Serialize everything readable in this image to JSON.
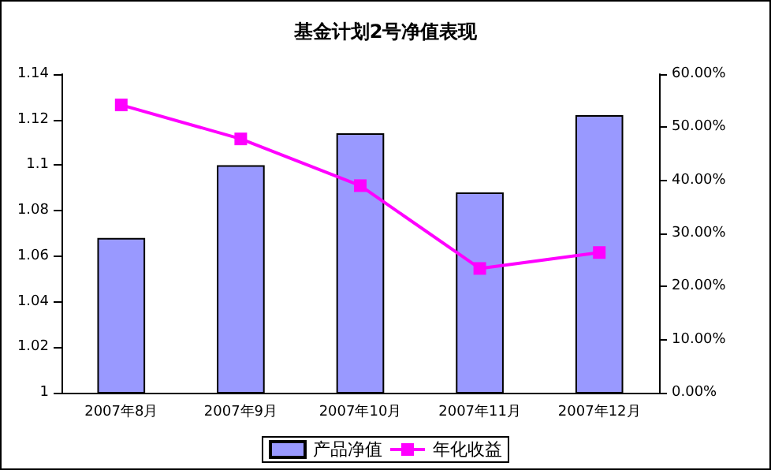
{
  "chart_data": {
    "type": "bar",
    "title": "基金计划2号净值表现",
    "categories": [
      "2007年8月",
      "2007年9月",
      "2007年10月",
      "2007年11月",
      "2007年12月"
    ],
    "series": [
      {
        "name": "产品净值",
        "color": "#9999ff",
        "values": [
          1.068,
          1.1,
          1.114,
          1.088,
          1.122
        ]
      },
      {
        "name": "年化收益",
        "type": "line",
        "axis": "y2",
        "color": "#ff00ff",
        "marker": "square",
        "values": [
          54.2,
          47.8,
          39.0,
          23.4,
          26.4
        ]
      }
    ],
    "ylim": [
      1,
      1.14
    ],
    "yticks": [
      1,
      1.02,
      1.04,
      1.06,
      1.08,
      1.1,
      1.12,
      1.14
    ],
    "y2lim": [
      0,
      60
    ],
    "y2ticks": [
      {
        "value": 0,
        "label": "0.00%"
      },
      {
        "value": 10,
        "label": "10.00%"
      },
      {
        "value": 20,
        "label": "20.00%"
      },
      {
        "value": 30,
        "label": "30.00%"
      },
      {
        "value": 40,
        "label": "40.00%"
      },
      {
        "value": 50,
        "label": "50.00%"
      },
      {
        "value": 60,
        "label": "60.00%"
      }
    ],
    "grid": false,
    "legend": "bottom"
  }
}
